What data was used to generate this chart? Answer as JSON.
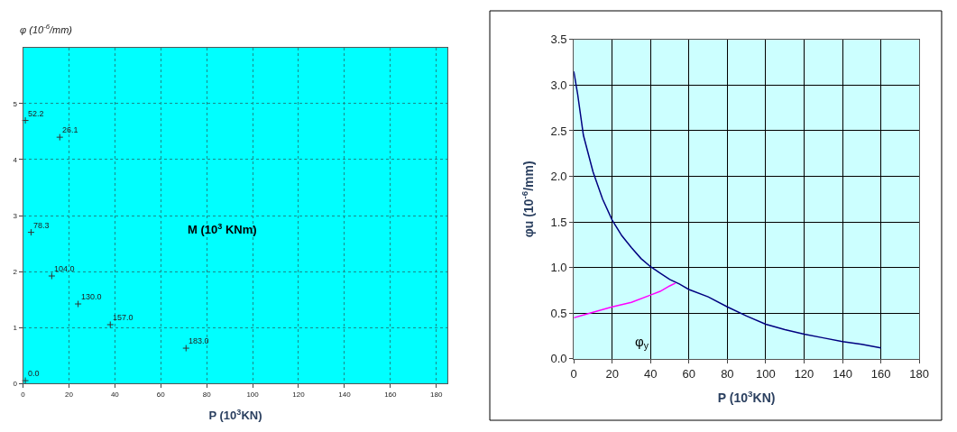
{
  "chart_data": [
    {
      "type": "scatter",
      "xlabel": "P (10$^{3}$KN)",
      "ylabel": "φ (10$^{-6}$/mm)",
      "xlim": [
        0,
        185
      ],
      "xticks": [
        0,
        20,
        40,
        60,
        80,
        100,
        120,
        140,
        160,
        180
      ],
      "ylim": [
        0,
        6
      ],
      "yticks": [
        0,
        1,
        2,
        3,
        4,
        5
      ],
      "grid": true,
      "marker": "cross",
      "series": [
        {
          "color": "#333333",
          "x": [
            1,
            16,
            3.5,
            12.5,
            24,
            38,
            71,
            1
          ],
          "values": [
            4.7,
            4.4,
            2.7,
            1.92,
            1.42,
            1.05,
            0.63,
            0.05
          ]
        }
      ],
      "annotations": [
        {
          "text": "52.2",
          "x": 1,
          "y": 4.7
        },
        {
          "text": "26.1",
          "x": 16,
          "y": 4.4
        },
        {
          "text": "78.3",
          "x": 3.5,
          "y": 2.7
        },
        {
          "text": "104.0",
          "x": 12.5,
          "y": 1.92
        },
        {
          "text": "130.0",
          "x": 24,
          "y": 1.42
        },
        {
          "text": "157.0",
          "x": 38,
          "y": 1.05
        },
        {
          "text": "183.0",
          "x": 71,
          "y": 0.63
        },
        {
          "text": "0.0",
          "x": 1,
          "y": 0.05
        },
        "M (10$^{3}$ KNm)"
      ]
    },
    {
      "type": "line",
      "xlabel": "P (10$^{3}$KN)",
      "ylabel": "φu (10$^{-6}$/mm)",
      "xlim": [
        0,
        180
      ],
      "xticks": [
        0,
        20,
        40,
        60,
        80,
        100,
        120,
        140,
        160,
        180
      ],
      "ylim": [
        0,
        3.5
      ],
      "yticks": [
        {
          "value": 0,
          "label": "0.0"
        },
        {
          "value": 0.5,
          "label": "0.5"
        },
        {
          "value": 1,
          "label": "1.0"
        },
        {
          "value": 1.5,
          "label": "1.5"
        },
        {
          "value": 2,
          "label": "2.0"
        },
        {
          "value": 2.5,
          "label": "2.5"
        },
        {
          "value": 3,
          "label": "3.0"
        },
        {
          "value": 3.5,
          "label": "3.5"
        }
      ],
      "grid": true,
      "line_style": "solid",
      "series": [
        {
          "color": "#000080",
          "x": [
            0,
            2,
            5,
            10,
            15,
            20,
            25,
            30,
            35,
            40,
            45,
            50,
            55,
            60,
            70,
            80,
            90,
            100,
            110,
            120,
            130,
            140,
            150,
            160
          ],
          "values": [
            3.15,
            2.9,
            2.45,
            2.05,
            1.75,
            1.52,
            1.35,
            1.22,
            1.1,
            1.01,
            0.94,
            0.87,
            0.82,
            0.76,
            0.68,
            0.57,
            0.47,
            0.38,
            0.32,
            0.27,
            0.23,
            0.19,
            0.16,
            0.12
          ]
        },
        {
          "color": "#ff00ff",
          "x": [
            0,
            5,
            10,
            20,
            30,
            40,
            45,
            50,
            53
          ],
          "values": [
            0.45,
            0.48,
            0.51,
            0.57,
            0.62,
            0.7,
            0.74,
            0.8,
            0.83
          ]
        }
      ],
      "annotations": [
        {
          "text": "φ$_{y}$",
          "x": 18,
          "y": 0.57
        }
      ]
    }
  ]
}
